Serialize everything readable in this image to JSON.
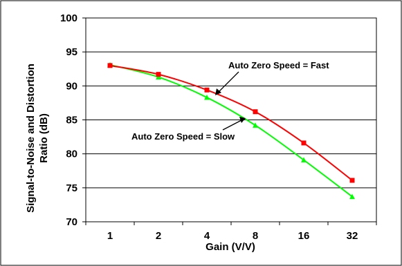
{
  "chart_data": {
    "type": "line",
    "title": "",
    "xlabel": "Gain (V/V)",
    "ylabel_lines": [
      "Signal-to-Noise and Distortion",
      "Ratio (dB)"
    ],
    "categories": [
      "1",
      "2",
      "4",
      "8",
      "16",
      "32"
    ],
    "ylim": [
      70,
      100
    ],
    "yticks": [
      "70",
      "75",
      "80",
      "85",
      "90",
      "95",
      "100"
    ],
    "grid": true,
    "series": [
      {
        "name": "Auto Zero Speed = Fast",
        "color": "#ff0000",
        "marker": "square",
        "values": [
          93.0,
          91.7,
          89.4,
          86.2,
          81.6,
          76.1
        ]
      },
      {
        "name": "Auto Zero Speed = Slow",
        "color": "#00ff00",
        "marker": "triangle",
        "values": [
          93.1,
          91.3,
          88.3,
          84.2,
          79.1,
          73.7
        ]
      }
    ],
    "annotations": [
      {
        "text": "Auto Zero Speed = Fast",
        "series": 0
      },
      {
        "text": "Auto Zero Speed = Slow",
        "series": 1
      }
    ]
  }
}
